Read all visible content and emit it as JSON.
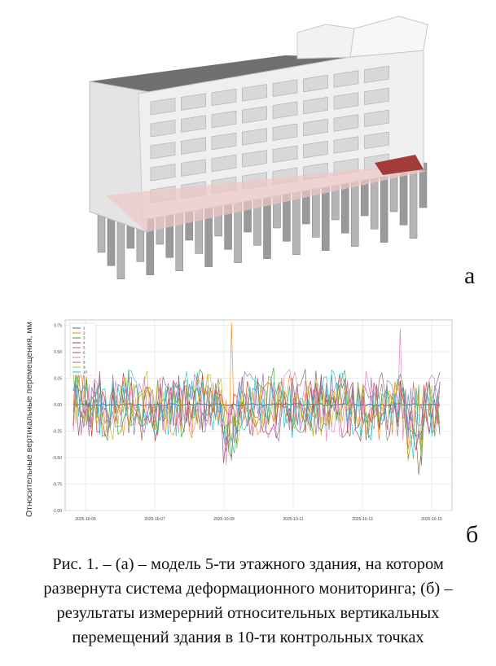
{
  "panels": {
    "a_label": "а",
    "b_label": "б"
  },
  "chart_data": {
    "type": "line",
    "ylabel": "Относительные вертикальные перемещения, мм",
    "xlabel": "",
    "ylim": [
      -1.0,
      0.8
    ],
    "yticks": [
      "0.75",
      "0.50",
      "0.25",
      "0.00",
      "-0.25",
      "-0.50",
      "-0.75",
      "-1.00"
    ],
    "ytick_values": [
      0.75,
      0.5,
      0.25,
      0.0,
      -0.25,
      -0.5,
      -0.75,
      -1.0
    ],
    "xticks": [
      "2025-10-05",
      "2025-10-07",
      "2025-10-09",
      "2025-10-11",
      "2025-10-13",
      "2025-10-15"
    ],
    "grid": true,
    "legend_placement": "top-left",
    "series": [
      {
        "name": "1",
        "color": "#1f77b4"
      },
      {
        "name": "2",
        "color": "#ff7f0e"
      },
      {
        "name": "3",
        "color": "#2ca02c"
      },
      {
        "name": "4",
        "color": "#d62728"
      },
      {
        "name": "5",
        "color": "#9467bd"
      },
      {
        "name": "6",
        "color": "#8c564b"
      },
      {
        "name": "7",
        "color": "#e377c2"
      },
      {
        "name": "8",
        "color": "#7f7f7f"
      },
      {
        "name": "9",
        "color": "#bcbd22"
      },
      {
        "name": "10",
        "color": "#17becf"
      }
    ]
  },
  "caption": {
    "line1": "Рис. 1. – (а) – модель 5-ти этажного здания, на котором",
    "line2": "развернута система деформационного мониторинга; (б) –",
    "line3": "результаты измерерний относительных вертикальных",
    "line4": "перемещений здания в 10-ти контрольных точках"
  }
}
